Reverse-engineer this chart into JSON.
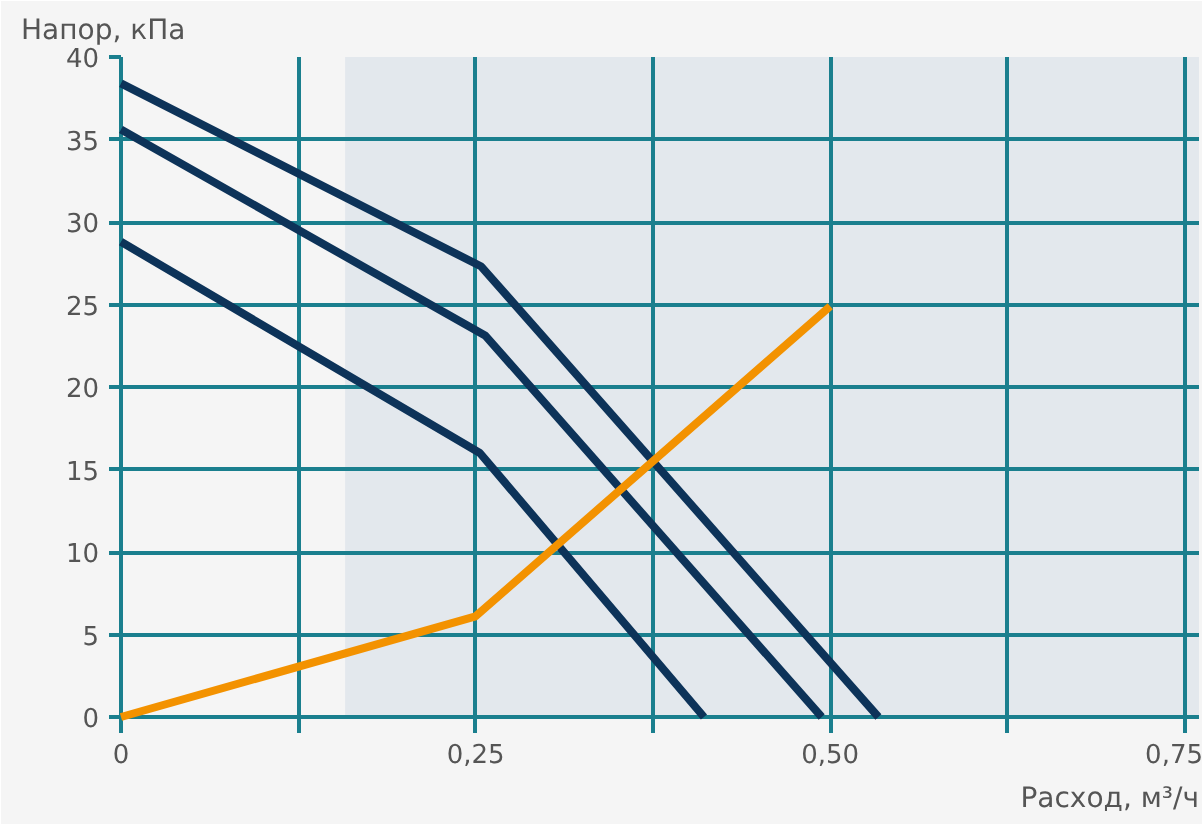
{
  "chart_data": {
    "type": "line",
    "xlabel": "Расход, м³/ч",
    "ylabel": "Напор, кПа",
    "xlim": [
      0,
      0.76
    ],
    "ylim": [
      0,
      40
    ],
    "xticks": [
      {
        "value": 0,
        "label": "0"
      },
      {
        "value": 0.125,
        "label": null
      },
      {
        "value": 0.25,
        "label": "0,25"
      },
      {
        "value": 0.375,
        "label": null
      },
      {
        "value": 0.5,
        "label": "0,50"
      },
      {
        "value": 0.625,
        "label": null
      },
      {
        "value": 0.75,
        "label": "0,75"
      }
    ],
    "yticks": [
      0,
      5,
      10,
      15,
      20,
      25,
      30,
      35,
      40
    ],
    "grid": true,
    "bands": [
      {
        "axis": "x",
        "from": 0.158,
        "to": 0.76,
        "color": "#e3e8ed"
      }
    ],
    "series": [
      {
        "color": "#0d3359",
        "x": [
          0,
          0.254,
          0.534
        ],
        "values": [
          38.4,
          27.3,
          0
        ]
      },
      {
        "color": "#0d3359",
        "x": [
          0,
          0.257,
          0.494
        ],
        "values": [
          35.6,
          23.1,
          0
        ]
      },
      {
        "color": "#0d3359",
        "x": [
          0,
          0.253,
          0.411
        ],
        "values": [
          28.8,
          16.0,
          0
        ]
      },
      {
        "color": "#f39200",
        "x": [
          0,
          0.25,
          0.5
        ],
        "values": [
          0,
          6.1,
          24.9
        ]
      }
    ]
  }
}
